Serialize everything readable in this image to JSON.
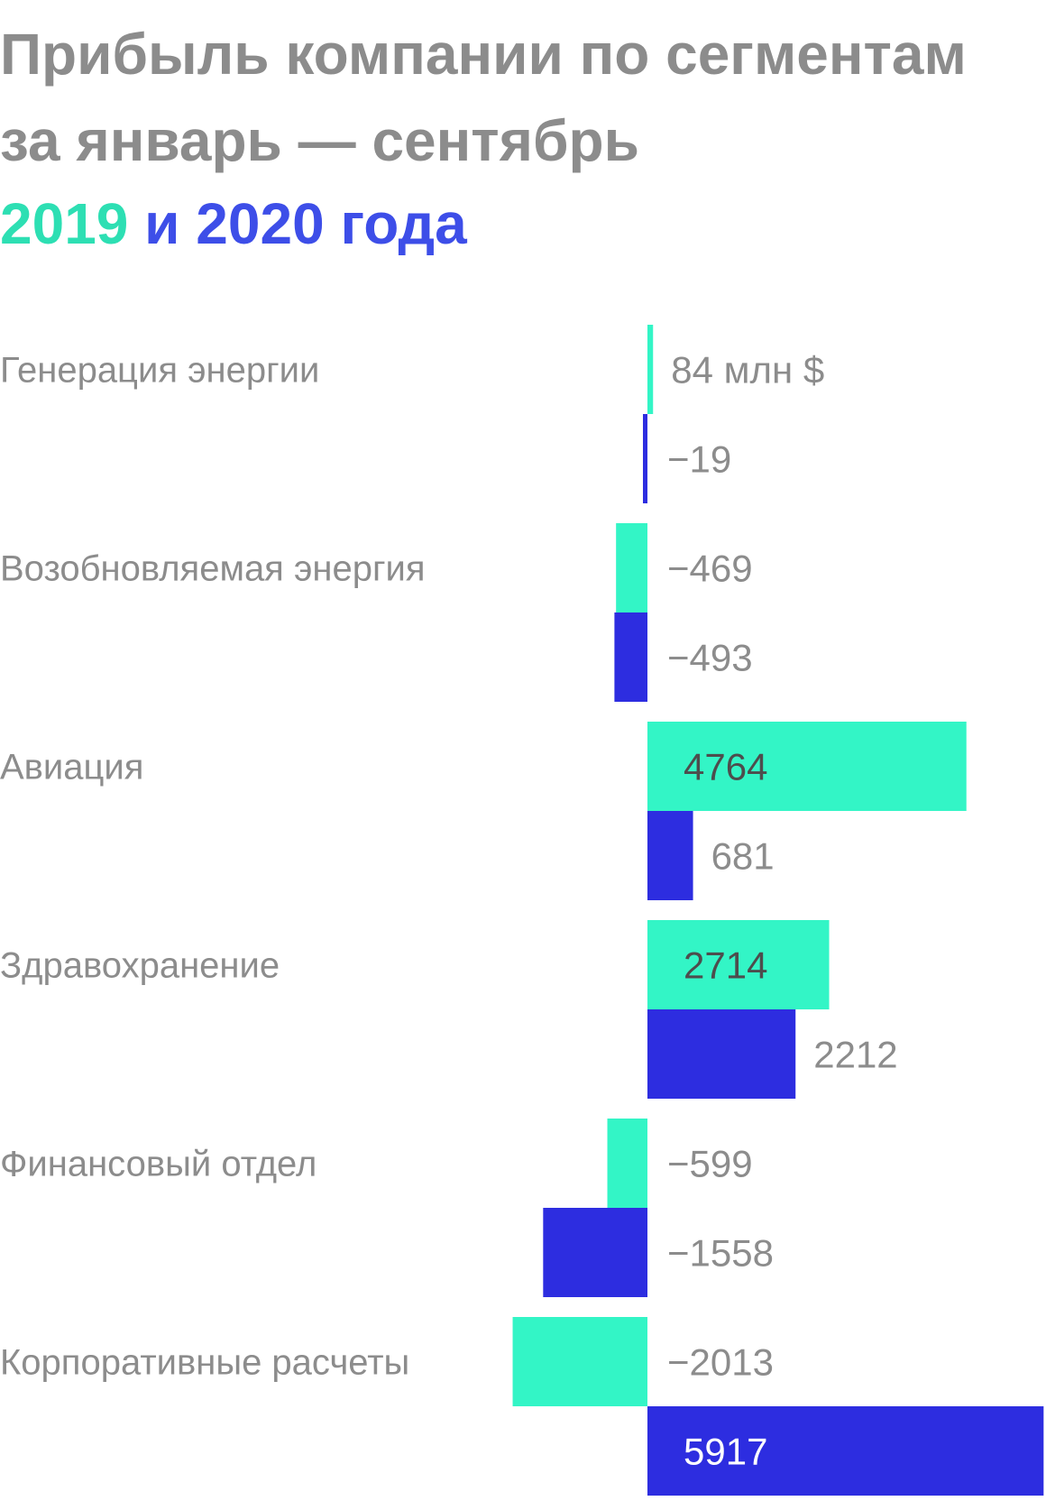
{
  "title": {
    "line1": "Прибыль компании по сегментам",
    "line2": "за январь — сентябрь",
    "year_a": "2019",
    "conjunction": " и ",
    "year_b": "2020 года"
  },
  "colors": {
    "series_2019": "#33f5c6",
    "series_2020": "#2d2de0",
    "text": "#8c8c8c"
  },
  "chart_data": {
    "type": "bar",
    "orientation": "horizontal",
    "categories": [
      "Генерация энергии",
      "Возобновляемая энергия",
      "Авиация",
      "Здравохранение",
      "Финансовый отдел",
      "Корпоративные расчеты"
    ],
    "series": [
      {
        "name": "2019",
        "values": [
          84,
          -469,
          4764,
          2714,
          -599,
          -2013
        ],
        "labels": [
          "84 млн $",
          "−469",
          "4764",
          "2714",
          "−599",
          "−2013"
        ]
      },
      {
        "name": "2020",
        "values": [
          -19,
          -493,
          681,
          2212,
          -1558,
          5917
        ],
        "labels": [
          "−19",
          "−493",
          "681",
          "2212",
          "−1558",
          "5917"
        ]
      }
    ],
    "unit": "млн $",
    "xlim": [
      -2013,
      5917
    ],
    "grid": false,
    "legend": "in-title"
  }
}
